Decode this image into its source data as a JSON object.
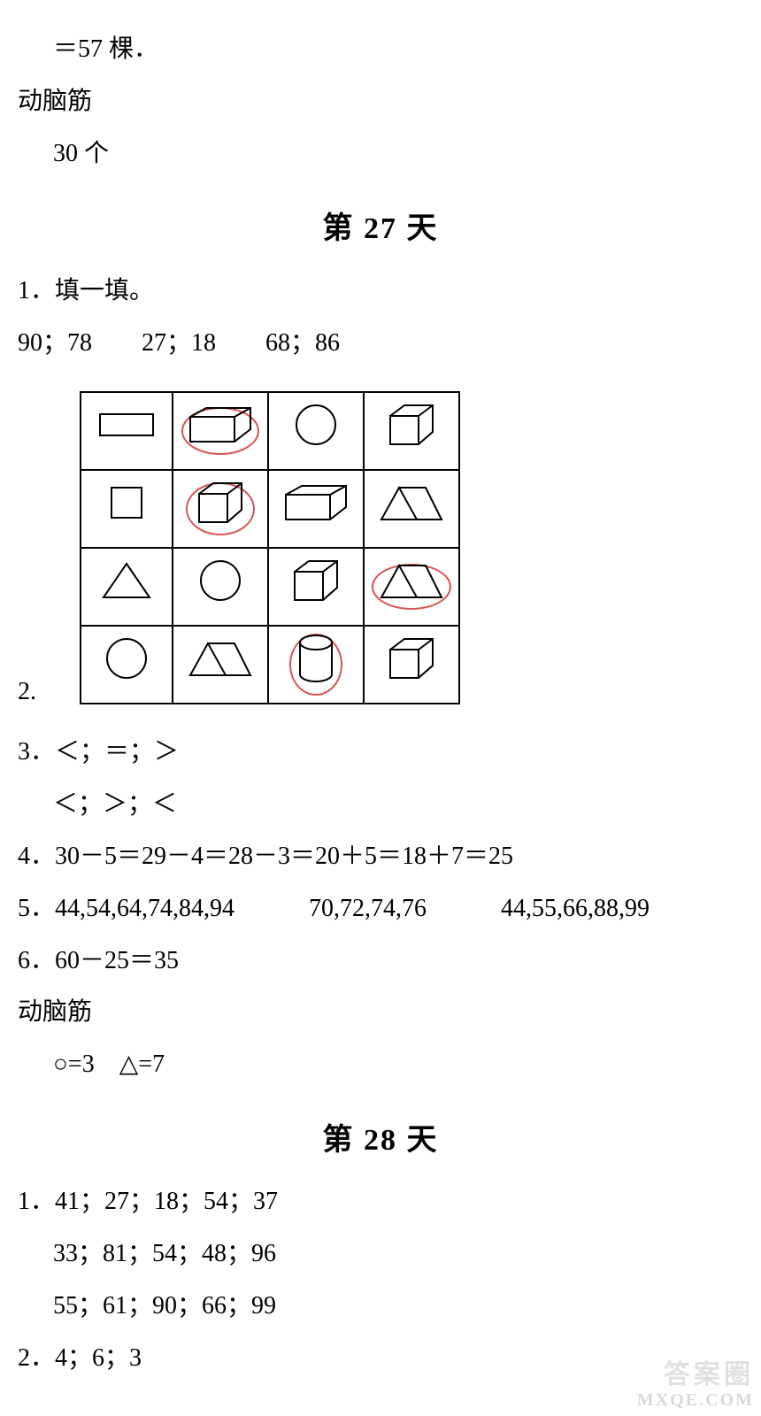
{
  "prev_tail": {
    "line1": "＝57 棵．",
    "line2": "动脑筋",
    "line3": "30 个"
  },
  "day27": {
    "title": "第 27 天",
    "q1_label": "1．填一填。",
    "q1_values": "90；78  27；18  68；86",
    "q2_label": "2.",
    "table": {
      "rows": [
        [
          {
            "shape": "rect2d",
            "circled": false
          },
          {
            "shape": "cuboid",
            "circled": true,
            "oval_w": 84,
            "oval_h": 50
          },
          {
            "shape": "circle",
            "circled": false
          },
          {
            "shape": "cube",
            "circled": false
          }
        ],
        [
          {
            "shape": "square2d",
            "circled": false
          },
          {
            "shape": "cube",
            "circled": true,
            "oval_w": 74,
            "oval_h": 56
          },
          {
            "shape": "cuboid",
            "circled": false
          },
          {
            "shape": "prism",
            "circled": false
          }
        ],
        [
          {
            "shape": "triangle2d",
            "circled": false
          },
          {
            "shape": "circle",
            "circled": false
          },
          {
            "shape": "cube",
            "circled": false
          },
          {
            "shape": "prism",
            "circled": true,
            "oval_w": 86,
            "oval_h": 48
          }
        ],
        [
          {
            "shape": "circle2d",
            "circled": false
          },
          {
            "shape": "prism",
            "circled": false
          },
          {
            "shape": "cylinder",
            "circled": true,
            "oval_w": 56,
            "oval_h": 66
          },
          {
            "shape": "cube",
            "circled": false
          }
        ]
      ]
    },
    "q3_line1": "3．＜；＝；＞",
    "q3_line2": "＜；＞；＜",
    "q4": "4．30－5＝29－4＝28－3＝20＋5＝18＋7＝25",
    "q5": "5．44,54,64,74,84,94   70,72,74,76   44,55,66,88,99",
    "q6": "6．60－25＝35",
    "brain_label": "动脑筋",
    "brain_ans": "○=3 △=7"
  },
  "day28": {
    "title": "第 28 天",
    "q1_row1": "1．41；27；18；54；37",
    "q1_row2": "33；81；54；48；96",
    "q1_row3": "55；61；90；66；99",
    "q2": "2．4；6；3"
  },
  "watermark": {
    "line1": "答案圈",
    "line2": "MXQE.COM"
  }
}
